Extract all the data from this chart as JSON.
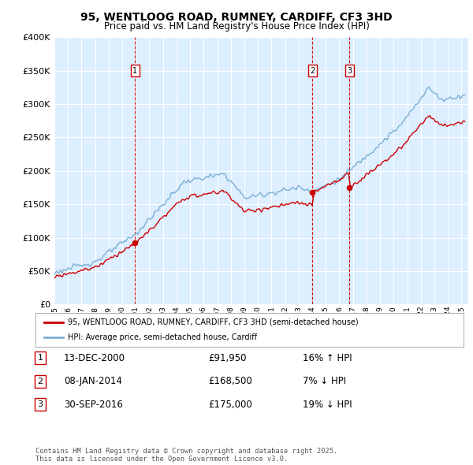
{
  "title": "95, WENTLOOG ROAD, RUMNEY, CARDIFF, CF3 3HD",
  "subtitle": "Price paid vs. HM Land Registry's House Price Index (HPI)",
  "legend_line1": "95, WENTLOOG ROAD, RUMNEY, CARDIFF, CF3 3HD (semi-detached house)",
  "legend_line2": "HPI: Average price, semi-detached house, Cardiff",
  "footer": "Contains HM Land Registry data © Crown copyright and database right 2025.\nThis data is licensed under the Open Government Licence v3.0.",
  "sale_color": "#cc0000",
  "hpi_color": "#7ab0d4",
  "background_color": "#ddeeff",
  "grid_color": "#ffffff",
  "ylim": [
    0,
    400000
  ],
  "yticks": [
    0,
    50000,
    100000,
    150000,
    200000,
    250000,
    300000,
    350000,
    400000
  ],
  "sales": [
    {
      "price": 91950,
      "label": "1",
      "pct": "16% ↑ HPI",
      "date_str": "13-DEC-2000",
      "year": 2000,
      "month": 12,
      "day": 13
    },
    {
      "price": 168500,
      "label": "2",
      "pct": "7% ↓ HPI",
      "date_str": "08-JAN-2014",
      "year": 2014,
      "month": 1,
      "day": 8
    },
    {
      "price": 175000,
      "label": "3",
      "pct": "19% ↓ HPI",
      "date_str": "30-SEP-2016",
      "year": 2016,
      "month": 9,
      "day": 30
    }
  ]
}
